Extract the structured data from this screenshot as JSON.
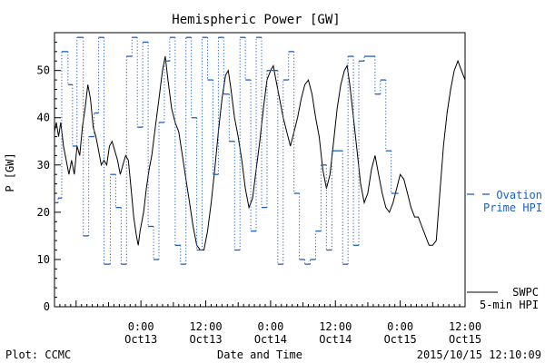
{
  "chart_data": {
    "type": "line",
    "title": "Hemispheric Power [GW]",
    "xlabel": "Date and Time",
    "ylabel": "P [GW]",
    "ylim": [
      0,
      58
    ],
    "xlim": [
      "2015-10-12T08:00",
      "2015-10-15T12:00"
    ],
    "y_ticks": [
      0,
      10,
      20,
      30,
      40,
      50
    ],
    "x_ticks": [
      {
        "t": "2015-10-13T00:00",
        "time": "0:00",
        "date": "Oct13"
      },
      {
        "t": "2015-10-13T12:00",
        "time": "12:00",
        "date": "Oct13"
      },
      {
        "t": "2015-10-14T00:00",
        "time": "0:00",
        "date": "Oct14"
      },
      {
        "t": "2015-10-14T12:00",
        "time": "12:00",
        "date": "Oct14"
      },
      {
        "t": "2015-10-15T00:00",
        "time": "0:00",
        "date": "Oct15"
      },
      {
        "t": "2015-10-15T12:00",
        "time": "12:00",
        "date": "Oct15"
      }
    ],
    "grid": false,
    "series": [
      {
        "name": "SWPC 5-min HPI",
        "color": "#000000",
        "style": "solid",
        "points": [
          [
            "2015-10-12T08:00",
            37
          ],
          [
            "2015-10-12T08:20",
            39
          ],
          [
            "2015-10-12T08:45",
            36
          ],
          [
            "2015-10-12T09:10",
            39
          ],
          [
            "2015-10-12T09:40",
            34
          ],
          [
            "2015-10-12T10:10",
            31
          ],
          [
            "2015-10-12T10:40",
            28
          ],
          [
            "2015-10-12T11:10",
            31
          ],
          [
            "2015-10-12T11:40",
            28
          ],
          [
            "2015-10-12T12:10",
            34
          ],
          [
            "2015-10-12T12:40",
            32
          ],
          [
            "2015-10-12T13:10",
            38
          ],
          [
            "2015-10-12T13:40",
            42
          ],
          [
            "2015-10-12T14:10",
            47
          ],
          [
            "2015-10-12T14:40",
            44
          ],
          [
            "2015-10-12T15:10",
            38
          ],
          [
            "2015-10-12T15:40",
            36
          ],
          [
            "2015-10-12T16:10",
            33
          ],
          [
            "2015-10-12T16:40",
            30
          ],
          [
            "2015-10-12T17:10",
            31
          ],
          [
            "2015-10-12T17:40",
            30
          ],
          [
            "2015-10-12T18:10",
            34
          ],
          [
            "2015-10-12T18:40",
            35
          ],
          [
            "2015-10-12T19:10",
            33
          ],
          [
            "2015-10-12T19:40",
            31
          ],
          [
            "2015-10-12T20:10",
            28
          ],
          [
            "2015-10-12T20:40",
            30
          ],
          [
            "2015-10-12T21:10",
            32
          ],
          [
            "2015-10-12T21:40",
            31
          ],
          [
            "2015-10-12T22:10",
            25
          ],
          [
            "2015-10-12T22:40",
            19
          ],
          [
            "2015-10-12T23:10",
            15
          ],
          [
            "2015-10-12T23:30",
            13
          ],
          [
            "2015-10-12T23:50",
            16
          ],
          [
            "2015-10-13T00:30",
            20
          ],
          [
            "2015-10-13T01:00",
            25
          ],
          [
            "2015-10-13T01:30",
            29
          ],
          [
            "2015-10-13T02:00",
            32
          ],
          [
            "2015-10-13T02:40",
            38
          ],
          [
            "2015-10-13T03:20",
            44
          ],
          [
            "2015-10-13T04:00",
            50
          ],
          [
            "2015-10-13T04:30",
            53
          ],
          [
            "2015-10-13T05:00",
            48
          ],
          [
            "2015-10-13T05:40",
            42
          ],
          [
            "2015-10-13T06:20",
            39
          ],
          [
            "2015-10-13T07:00",
            37
          ],
          [
            "2015-10-13T07:40",
            32
          ],
          [
            "2015-10-13T08:20",
            27
          ],
          [
            "2015-10-13T09:00",
            22
          ],
          [
            "2015-10-13T09:40",
            17
          ],
          [
            "2015-10-13T10:20",
            13
          ],
          [
            "2015-10-13T11:00",
            12
          ],
          [
            "2015-10-13T11:40",
            12
          ],
          [
            "2015-10-13T12:20",
            16
          ],
          [
            "2015-10-13T13:00",
            22
          ],
          [
            "2015-10-13T13:40",
            29
          ],
          [
            "2015-10-13T14:20",
            37
          ],
          [
            "2015-10-13T15:00",
            44
          ],
          [
            "2015-10-13T15:40",
            49
          ],
          [
            "2015-10-13T16:10",
            50
          ],
          [
            "2015-10-13T16:40",
            46
          ],
          [
            "2015-10-13T17:20",
            40
          ],
          [
            "2015-10-13T18:00",
            36
          ],
          [
            "2015-10-13T18:40",
            31
          ],
          [
            "2015-10-13T19:20",
            25
          ],
          [
            "2015-10-13T20:00",
            21
          ],
          [
            "2015-10-13T20:40",
            23
          ],
          [
            "2015-10-13T21:20",
            29
          ],
          [
            "2015-10-13T22:00",
            35
          ],
          [
            "2015-10-13T22:40",
            42
          ],
          [
            "2015-10-13T23:20",
            48
          ],
          [
            "2015-10-14T00:00",
            50
          ],
          [
            "2015-10-14T00:30",
            51
          ],
          [
            "2015-10-14T01:00",
            48
          ],
          [
            "2015-10-14T01:40",
            44
          ],
          [
            "2015-10-14T02:20",
            40
          ],
          [
            "2015-10-14T03:00",
            37
          ],
          [
            "2015-10-14T03:40",
            34
          ],
          [
            "2015-10-14T04:20",
            37
          ],
          [
            "2015-10-14T05:00",
            40
          ],
          [
            "2015-10-14T05:40",
            44
          ],
          [
            "2015-10-14T06:20",
            47
          ],
          [
            "2015-10-14T07:00",
            48
          ],
          [
            "2015-10-14T07:40",
            45
          ],
          [
            "2015-10-14T08:20",
            40
          ],
          [
            "2015-10-14T09:00",
            36
          ],
          [
            "2015-10-14T09:40",
            29
          ],
          [
            "2015-10-14T10:20",
            25
          ],
          [
            "2015-10-14T11:00",
            28
          ],
          [
            "2015-10-14T11:40",
            35
          ],
          [
            "2015-10-14T12:20",
            42
          ],
          [
            "2015-10-14T13:00",
            47
          ],
          [
            "2015-10-14T13:40",
            50
          ],
          [
            "2015-10-14T14:10",
            51
          ],
          [
            "2015-10-14T14:40",
            47
          ],
          [
            "2015-10-14T15:20",
            40
          ],
          [
            "2015-10-14T16:00",
            33
          ],
          [
            "2015-10-14T16:40",
            26
          ],
          [
            "2015-10-14T17:20",
            22
          ],
          [
            "2015-10-14T18:00",
            24
          ],
          [
            "2015-10-14T18:40",
            29
          ],
          [
            "2015-10-14T19:20",
            32
          ],
          [
            "2015-10-14T20:00",
            28
          ],
          [
            "2015-10-14T20:40",
            24
          ],
          [
            "2015-10-14T21:20",
            21
          ],
          [
            "2015-10-14T22:00",
            20
          ],
          [
            "2015-10-14T22:40",
            22
          ],
          [
            "2015-10-14T23:20",
            25
          ],
          [
            "2015-10-15T00:00",
            28
          ],
          [
            "2015-10-15T00:40",
            27
          ],
          [
            "2015-10-15T01:20",
            24
          ],
          [
            "2015-10-15T02:00",
            21
          ],
          [
            "2015-10-15T02:40",
            19
          ],
          [
            "2015-10-15T03:20",
            19
          ],
          [
            "2015-10-15T04:00",
            17
          ],
          [
            "2015-10-15T04:40",
            15
          ],
          [
            "2015-10-15T05:20",
            13
          ],
          [
            "2015-10-15T06:00",
            13
          ],
          [
            "2015-10-15T06:40",
            14
          ],
          [
            "2015-10-15T07:20",
            24
          ],
          [
            "2015-10-15T08:00",
            34
          ],
          [
            "2015-10-15T08:40",
            41
          ],
          [
            "2015-10-15T09:20",
            46
          ],
          [
            "2015-10-15T10:00",
            50
          ],
          [
            "2015-10-15T10:40",
            52
          ],
          [
            "2015-10-15T11:20",
            50
          ],
          [
            "2015-10-15T12:00",
            48
          ]
        ]
      },
      {
        "name": "Ovation Prime HPI",
        "color": "#1f5fc7",
        "style": "dotted-step",
        "points": [
          [
            "2015-10-12T08:00",
            22
          ],
          [
            "2015-10-12T08:40",
            23
          ],
          [
            "2015-10-12T09:20",
            54
          ],
          [
            "2015-10-12T10:30",
            47
          ],
          [
            "2015-10-12T11:20",
            34
          ],
          [
            "2015-10-12T12:10",
            57
          ],
          [
            "2015-10-12T13:20",
            15
          ],
          [
            "2015-10-12T14:20",
            36
          ],
          [
            "2015-10-12T15:20",
            41
          ],
          [
            "2015-10-12T16:10",
            57
          ],
          [
            "2015-10-12T17:10",
            9
          ],
          [
            "2015-10-12T18:20",
            28
          ],
          [
            "2015-10-12T19:20",
            21
          ],
          [
            "2015-10-12T20:20",
            9
          ],
          [
            "2015-10-12T21:20",
            53
          ],
          [
            "2015-10-12T22:20",
            57
          ],
          [
            "2015-10-12T23:20",
            38
          ],
          [
            "2015-10-13T00:20",
            56
          ],
          [
            "2015-10-13T01:20",
            17
          ],
          [
            "2015-10-13T02:20",
            10
          ],
          [
            "2015-10-13T03:20",
            39
          ],
          [
            "2015-10-13T04:20",
            52
          ],
          [
            "2015-10-13T05:20",
            57
          ],
          [
            "2015-10-13T06:20",
            13
          ],
          [
            "2015-10-13T07:20",
            9
          ],
          [
            "2015-10-13T08:20",
            57
          ],
          [
            "2015-10-13T09:20",
            40
          ],
          [
            "2015-10-13T10:20",
            12
          ],
          [
            "2015-10-13T11:20",
            57
          ],
          [
            "2015-10-13T12:20",
            48
          ],
          [
            "2015-10-13T13:20",
            28
          ],
          [
            "2015-10-13T14:20",
            57
          ],
          [
            "2015-10-13T15:20",
            45
          ],
          [
            "2015-10-13T16:20",
            35
          ],
          [
            "2015-10-13T17:20",
            12
          ],
          [
            "2015-10-13T18:20",
            57
          ],
          [
            "2015-10-13T19:20",
            48
          ],
          [
            "2015-10-13T20:20",
            16
          ],
          [
            "2015-10-13T21:20",
            57
          ],
          [
            "2015-10-13T22:20",
            21
          ],
          [
            "2015-10-13T23:20",
            50
          ],
          [
            "2015-10-14T00:20",
            50
          ],
          [
            "2015-10-14T01:20",
            9
          ],
          [
            "2015-10-14T02:20",
            48
          ],
          [
            "2015-10-14T03:20",
            54
          ],
          [
            "2015-10-14T04:20",
            24
          ],
          [
            "2015-10-14T05:20",
            10
          ],
          [
            "2015-10-14T06:20",
            9
          ],
          [
            "2015-10-14T07:20",
            10
          ],
          [
            "2015-10-14T08:20",
            16
          ],
          [
            "2015-10-14T09:20",
            30
          ],
          [
            "2015-10-14T10:20",
            12
          ],
          [
            "2015-10-14T11:20",
            33
          ],
          [
            "2015-10-14T12:20",
            33
          ],
          [
            "2015-10-14T13:20",
            9
          ],
          [
            "2015-10-14T14:20",
            53
          ],
          [
            "2015-10-14T15:20",
            13
          ],
          [
            "2015-10-14T16:20",
            52
          ],
          [
            "2015-10-14T17:20",
            53
          ],
          [
            "2015-10-14T18:20",
            53
          ],
          [
            "2015-10-14T19:20",
            45
          ],
          [
            "2015-10-14T20:20",
            48
          ],
          [
            "2015-10-14T21:20",
            33
          ],
          [
            "2015-10-14T22:20",
            24
          ]
        ]
      }
    ],
    "legend": {
      "placement": "right",
      "entries": [
        {
          "line1": "SWPC",
          "line2": "5-min HPI",
          "color": "#000000",
          "style": "solid"
        },
        {
          "line1": "Ovation",
          "line2": "Prime HPI",
          "color": "#1f5fc7",
          "style": "dashed"
        }
      ]
    }
  },
  "footer": {
    "plot_credit": "Plot: CCMC",
    "timestamp": "2015/10/15 12:10:09"
  }
}
